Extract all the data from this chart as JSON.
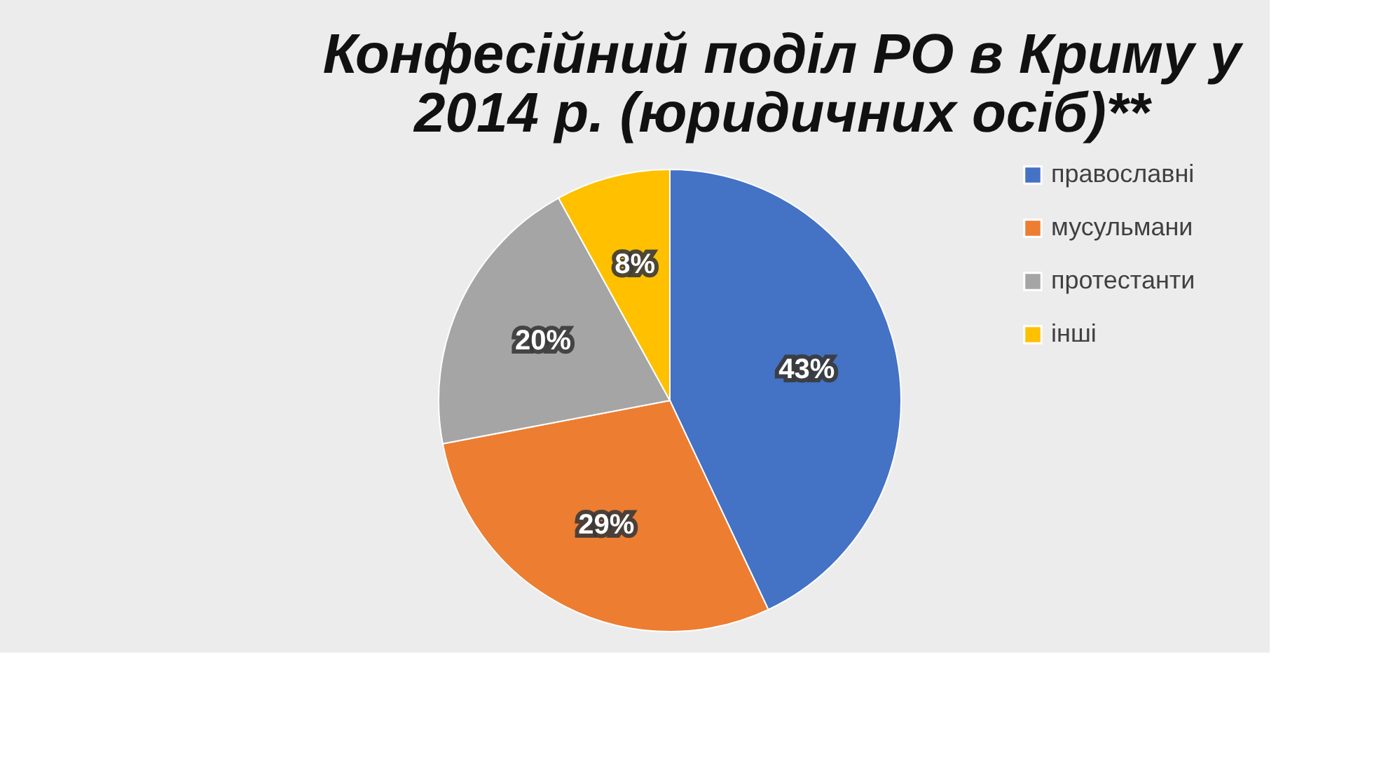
{
  "chart_data": {
    "type": "pie",
    "title": [
      "Конфесійний поділ РО в Криму у",
      "2014 р. (юридичних осіб)**"
    ],
    "categories": [
      "православні",
      "мусульмани",
      "протестанти",
      "інші"
    ],
    "values": [
      43,
      29,
      20,
      8
    ],
    "colors": [
      "#4472c4",
      "#ed7d31",
      "#a5a5a5",
      "#ffc000"
    ],
    "value_labels": [
      "43%",
      "29%",
      "20%",
      "8%"
    ],
    "legend": "right"
  }
}
